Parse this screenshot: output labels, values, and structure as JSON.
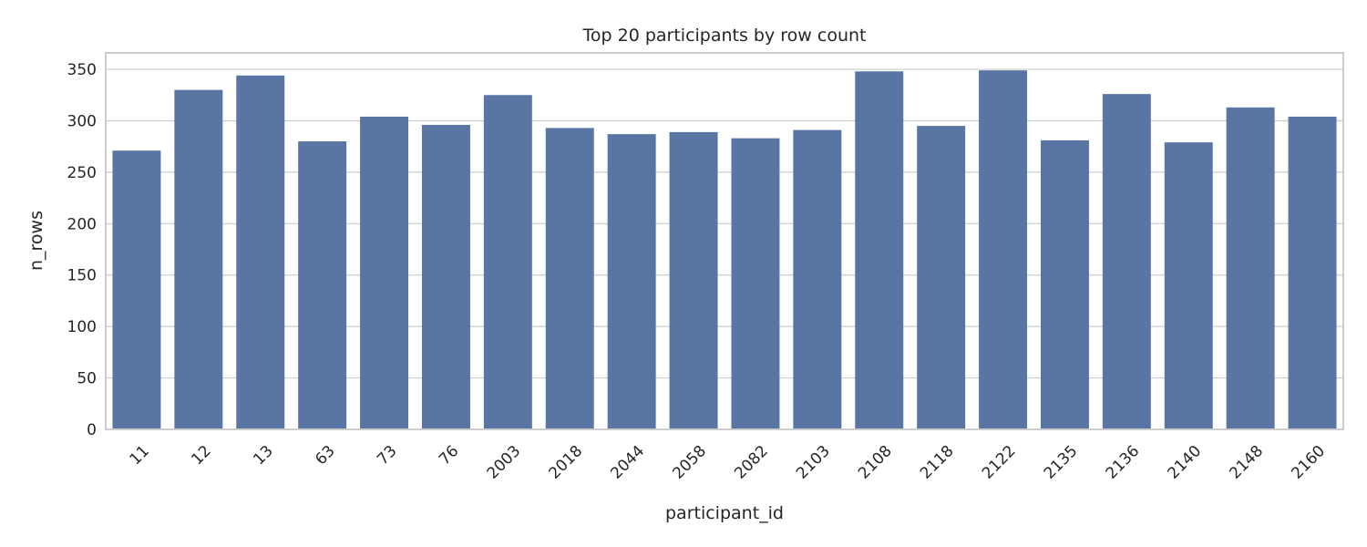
{
  "chart_data": {
    "type": "bar",
    "title": "Top 20 participants by row count",
    "xlabel": "participant_id",
    "ylabel": "n_rows",
    "categories": [
      "11",
      "12",
      "13",
      "63",
      "73",
      "76",
      "2003",
      "2018",
      "2044",
      "2058",
      "2082",
      "2103",
      "2108",
      "2118",
      "2122",
      "2135",
      "2136",
      "2140",
      "2148",
      "2160"
    ],
    "values": [
      271,
      330,
      344,
      280,
      304,
      296,
      325,
      293,
      287,
      289,
      283,
      291,
      348,
      295,
      349,
      281,
      326,
      279,
      313,
      304
    ],
    "ylim": [
      0,
      366
    ],
    "yticks": [
      0,
      50,
      100,
      150,
      200,
      250,
      300,
      350
    ],
    "grid": true,
    "bar_color": "#5975a4"
  }
}
